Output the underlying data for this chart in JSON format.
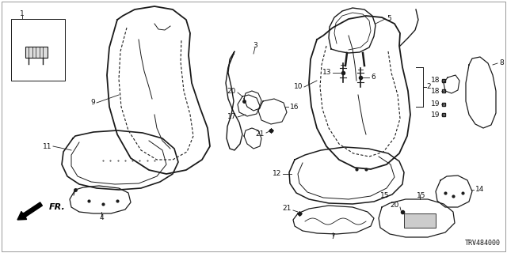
{
  "background_color": "#ffffff",
  "line_color": "#1a1a1a",
  "text_color": "#111111",
  "diagram_code": "TRV484000",
  "fr_label": "FR.",
  "font_size": 6.5,
  "border_color": "#888888"
}
